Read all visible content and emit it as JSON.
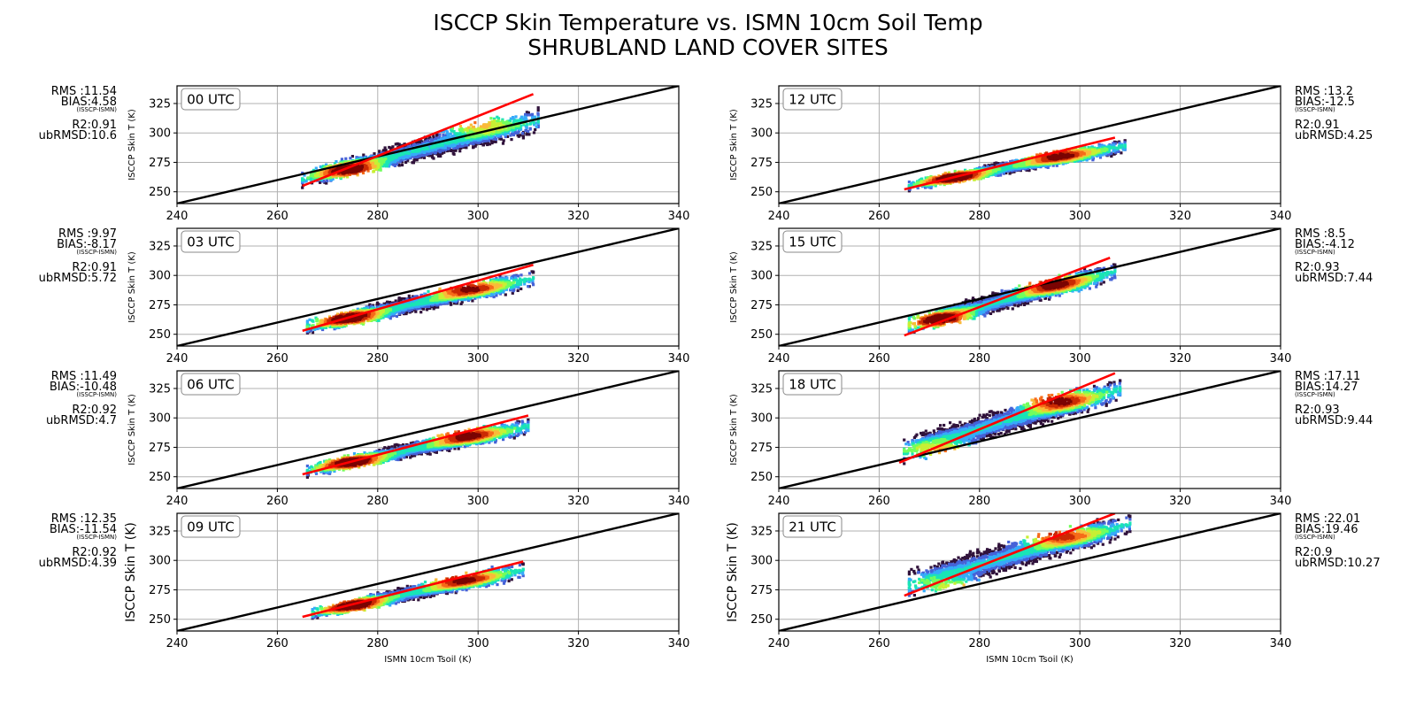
{
  "chart_data": {
    "type": "scatter",
    "title": "ISCCP Skin Temperature vs. ISMN 10cm Soil Temp",
    "subtitle": "SHRUBLAND LAND COVER SITES",
    "xlabel": "ISMN 10cm Tsoil (K)",
    "ylabel": "ISCCP Skin T (K)",
    "xlim": [
      240,
      340
    ],
    "ylim": [
      240,
      340
    ],
    "x_ticks": [
      "240",
      "260",
      "280",
      "300",
      "320",
      "340"
    ],
    "y_ticks": [
      "250",
      "275",
      "300",
      "325"
    ],
    "grid": true,
    "one_to_one_line_color": "#000000",
    "fit_line_color": "#ff0000",
    "bias_note": "(ISSCP-ISMN)",
    "density_colormap": [
      "#30123b",
      "#4662d7",
      "#36aaf9",
      "#1ae4b6",
      "#72fe5e",
      "#c8ef34",
      "#faba39",
      "#f66b19",
      "#ca2a04",
      "#7a0403"
    ],
    "panels": [
      {
        "label": "00 UTC",
        "rms": "RMS :11.54",
        "bias": "BIAS:4.58",
        "r2": "R2:0.91",
        "ubrmsd": "ubRMSD:10.6",
        "fit": {
          "x": [
            265,
            311
          ],
          "y": [
            255,
            333
          ]
        },
        "cloud": {
          "x": [
            265,
            312
          ],
          "y_low": [
            254,
            300
          ],
          "y_high": [
            267,
            322
          ]
        },
        "hotspot": {
          "x": 275,
          "y": 268
        },
        "hotspot2": {
          "x": 297,
          "y": 310
        }
      },
      {
        "label": "03 UTC",
        "rms": "RMS :9.97",
        "bias": "BIAS:-8.17",
        "r2": "R2:0.91",
        "ubrmsd": "ubRMSD:5.72",
        "fit": {
          "x": [
            265,
            311
          ],
          "y": [
            253,
            309
          ]
        },
        "cloud": {
          "x": [
            266,
            311
          ],
          "y_low": [
            250,
            290
          ],
          "y_high": [
            262,
            305
          ]
        },
        "hotspot": {
          "x": 274,
          "y": 264
        },
        "hotspot2": {
          "x": 296,
          "y": 291
        }
      },
      {
        "label": "06 UTC",
        "rms": "RMS :11.49",
        "bias": "BIAS:-10.48",
        "r2": "R2:0.92",
        "ubrmsd": "ubRMSD:4.7",
        "fit": {
          "x": [
            265,
            310
          ],
          "y": [
            252,
            302
          ]
        },
        "cloud": {
          "x": [
            266,
            310
          ],
          "y_low": [
            250,
            286
          ],
          "y_high": [
            260,
            300
          ]
        },
        "hotspot": {
          "x": 275,
          "y": 262
        },
        "hotspot2": {
          "x": 296,
          "y": 287
        }
      },
      {
        "label": "09 UTC",
        "rms": "RMS :12.35",
        "bias": "BIAS:-11.54",
        "r2": "R2:0.92",
        "ubrmsd": "ubRMSD:4.39",
        "fit": {
          "x": [
            265,
            309
          ],
          "y": [
            252,
            299
          ]
        },
        "cloud": {
          "x": [
            267,
            309
          ],
          "y_low": [
            250,
            285
          ],
          "y_high": [
            259,
            299
          ]
        },
        "hotspot": {
          "x": 275,
          "y": 262
        },
        "hotspot2": {
          "x": 295,
          "y": 286
        }
      },
      {
        "label": "12 UTC",
        "rms": "RMS :13.2",
        "bias": "BIAS:-12.5",
        "r2": "R2:0.91",
        "ubrmsd": "ubRMSD:4.25",
        "fit": {
          "x": [
            265,
            307
          ],
          "y": [
            252,
            296
          ]
        },
        "cloud": {
          "x": [
            266,
            309
          ],
          "y_low": [
            251,
            283
          ],
          "y_high": [
            259,
            295
          ]
        },
        "hotspot": {
          "x": 275,
          "y": 262
        },
        "hotspot2": {
          "x": 294,
          "y": 283
        }
      },
      {
        "label": "15 UTC",
        "rms": "RMS :8.5",
        "bias": "BIAS:-4.12",
        "r2": "R2:0.93",
        "ubrmsd": "ubRMSD:7.44",
        "fit": {
          "x": [
            265,
            306
          ],
          "y": [
            249,
            315
          ]
        },
        "cloud": {
          "x": [
            266,
            307
          ],
          "y_low": [
            250,
            296
          ],
          "y_high": [
            265,
            311
          ]
        },
        "hotspot": {
          "x": 273,
          "y": 262
        },
        "hotspot2": {
          "x": 293,
          "y": 294
        }
      },
      {
        "label": "18 UTC",
        "rms": "RMS :17.11",
        "bias": "BIAS:14.27",
        "r2": "R2:0.93",
        "ubrmsd": "ubRMSD:9.44",
        "fit": {
          "x": [
            264,
            307
          ],
          "y": [
            262,
            338
          ]
        },
        "cloud": {
          "x": [
            265,
            308
          ],
          "y_low": [
            262,
            315
          ],
          "y_high": [
            283,
            334
          ]
        },
        "hotspot": {
          "x": 275,
          "y": 270
        },
        "hotspot2": {
          "x": 294,
          "y": 316
        }
      },
      {
        "label": "21 UTC",
        "rms": "RMS :22.01",
        "bias": "BIAS:19.46",
        "r2": "R2:0.9",
        "ubrmsd": "ubRMSD:10.27",
        "fit": {
          "x": [
            265,
            307
          ],
          "y": [
            270,
            340
          ]
        },
        "cloud": {
          "x": [
            266,
            310
          ],
          "y_low": [
            268,
            322
          ],
          "y_high": [
            292,
            340
          ]
        },
        "hotspot": {
          "x": 277,
          "y": 275
        },
        "hotspot2": {
          "x": 294,
          "y": 323
        }
      }
    ]
  }
}
